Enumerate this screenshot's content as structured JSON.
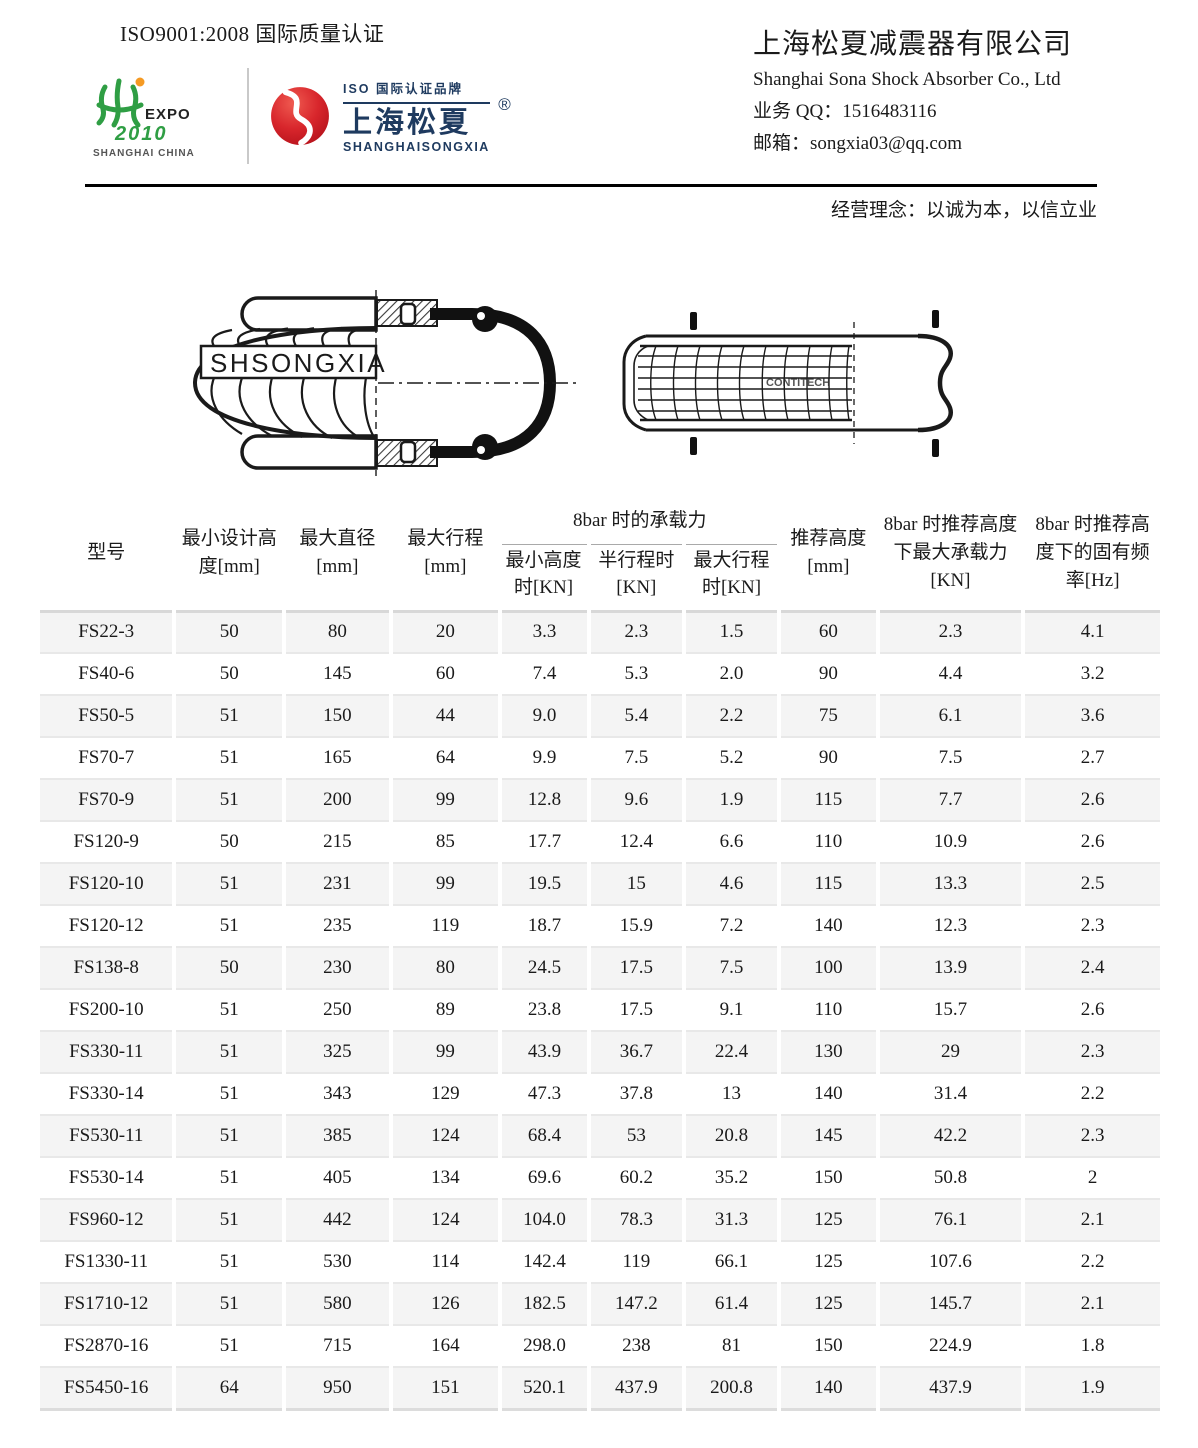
{
  "header": {
    "iso_cert": "ISO9001:2008 国际质量认证",
    "expo_logo": {
      "name": "EXPO",
      "year": "2010",
      "location": "SHANGHAI CHINA"
    },
    "brand_logo": {
      "tagline": "ISO 国际认证品牌",
      "brand_cn": "上海松夏",
      "registered": "®",
      "brand_en": "SHANGHAISONGXIA"
    },
    "company_cn": "上海松夏减震器有限公司",
    "company_en": "Shanghai Sona Shock Absorber Co., Ltd",
    "qq": "业务 QQ：1516483116",
    "email": "邮箱：songxia03@qq.com",
    "motto": "经营理念：以诚为本，以信立业"
  },
  "drawings": {
    "left_label": "SHSONGXIA",
    "right_label": "CONTITECH"
  },
  "table": {
    "span_header": "8bar 时的承载力",
    "columns": [
      "型号",
      "最小设计高度[mm]",
      "最大直径[mm]",
      "最大行程[mm]",
      "最小高度时[KN]",
      "半行程时[KN]",
      "最大行程时[KN]",
      "推荐高度[mm]",
      "8bar 时推荐高度下最大承载力[KN]",
      "8bar 时推荐高度下的固有频率[Hz]"
    ],
    "rows": [
      [
        "FS22-3",
        "50",
        "80",
        "20",
        "3.3",
        "2.3",
        "1.5",
        "60",
        "2.3",
        "4.1"
      ],
      [
        "FS40-6",
        "50",
        "145",
        "60",
        "7.4",
        "5.3",
        "2.0",
        "90",
        "4.4",
        "3.2"
      ],
      [
        "FS50-5",
        "51",
        "150",
        "44",
        "9.0",
        "5.4",
        "2.2",
        "75",
        "6.1",
        "3.6"
      ],
      [
        "FS70-7",
        "51",
        "165",
        "64",
        "9.9",
        "7.5",
        "5.2",
        "90",
        "7.5",
        "2.7"
      ],
      [
        "FS70-9",
        "51",
        "200",
        "99",
        "12.8",
        "9.6",
        "1.9",
        "115",
        "7.7",
        "2.6"
      ],
      [
        "FS120-9",
        "50",
        "215",
        "85",
        "17.7",
        "12.4",
        "6.6",
        "110",
        "10.9",
        "2.6"
      ],
      [
        "FS120-10",
        "51",
        "231",
        "99",
        "19.5",
        "15",
        "4.6",
        "115",
        "13.3",
        "2.5"
      ],
      [
        "FS120-12",
        "51",
        "235",
        "119",
        "18.7",
        "15.9",
        "7.2",
        "140",
        "12.3",
        "2.3"
      ],
      [
        "FS138-8",
        "50",
        "230",
        "80",
        "24.5",
        "17.5",
        "7.5",
        "100",
        "13.9",
        "2.4"
      ],
      [
        "FS200-10",
        "51",
        "250",
        "89",
        "23.8",
        "17.5",
        "9.1",
        "110",
        "15.7",
        "2.6"
      ],
      [
        "FS330-11",
        "51",
        "325",
        "99",
        "43.9",
        "36.7",
        "22.4",
        "130",
        "29",
        "2.3"
      ],
      [
        "FS330-14",
        "51",
        "343",
        "129",
        "47.3",
        "37.8",
        "13",
        "140",
        "31.4",
        "2.2"
      ],
      [
        "FS530-11",
        "51",
        "385",
        "124",
        "68.4",
        "53",
        "20.8",
        "145",
        "42.2",
        "2.3"
      ],
      [
        "FS530-14",
        "51",
        "405",
        "134",
        "69.6",
        "60.2",
        "35.2",
        "150",
        "50.8",
        "2"
      ],
      [
        "FS960-12",
        "51",
        "442",
        "124",
        "104.0",
        "78.3",
        "31.3",
        "125",
        "76.1",
        "2.1"
      ],
      [
        "FS1330-11",
        "51",
        "530",
        "114",
        "142.4",
        "119",
        "66.1",
        "125",
        "107.6",
        "2.2"
      ],
      [
        "FS1710-12",
        "51",
        "580",
        "126",
        "182.5",
        "147.2",
        "61.4",
        "125",
        "145.7",
        "2.1"
      ],
      [
        "FS2870-16",
        "51",
        "715",
        "164",
        "298.0",
        "238",
        "81",
        "150",
        "224.9",
        "1.8"
      ],
      [
        "FS5450-16",
        "64",
        "950",
        "151",
        "520.1",
        "437.9",
        "200.8",
        "140",
        "437.9",
        "1.9"
      ]
    ]
  },
  "colors": {
    "brand_navy": "#1e3a5f",
    "brand_red": "#d7252b",
    "expo_green": "#2f9e44",
    "expo_orange": "#f59a23",
    "zebra_row": "#f4f4f4",
    "table_border": "#d8d8d8",
    "ink": "#1a1a1a"
  }
}
